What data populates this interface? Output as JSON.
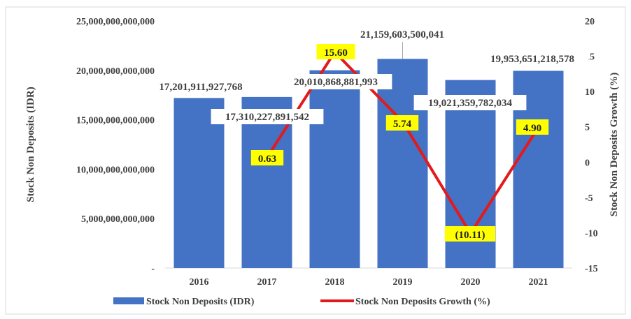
{
  "chart_data": {
    "type": "bar",
    "categories": [
      "2016",
      "2017",
      "2018",
      "2019",
      "2020",
      "2021"
    ],
    "series": [
      {
        "name": "Stock Non Deposits (IDR)",
        "type": "bar",
        "axis": "left",
        "color": "#4472C4",
        "values": [
          17201911927768,
          17310227891542,
          20010868881993,
          21159603500041,
          19021359782034,
          19953651218578
        ],
        "labels": [
          "17,201,911,927,768",
          "17,310,227,891,542",
          "20,010,868,881,993",
          "21,159,603,500,041",
          "19,021,359,782,034",
          "19,953,651,218,578"
        ]
      },
      {
        "name": "Stock Non Deposits Growth (%)",
        "type": "line",
        "axis": "right",
        "color": "#E31A1C",
        "label_background": "#FFFF00",
        "values": [
          null,
          0.63,
          15.6,
          5.74,
          -10.11,
          4.9
        ],
        "labels": [
          "",
          "0.63",
          "15.60",
          "5.74",
          "(10.11)",
          "4.90"
        ]
      }
    ],
    "ylabel": "Stock Non Deposits (IDR)",
    "ylabel_right": "Stock Non Deposits Growth (%)",
    "ylim": [
      0,
      25000000000000
    ],
    "ylim_right": [
      -15,
      20
    ],
    "left_ticks": [
      "-",
      "5,000,000,000,000",
      "10,000,000,000,000",
      "15,000,000,000,000",
      "20,000,000,000,000",
      "25,000,000,000,000"
    ],
    "right_ticks": [
      "-15",
      "-10",
      "-5",
      "0",
      "5",
      "10",
      "15",
      "20"
    ],
    "grid": false,
    "legend": "bottom"
  }
}
